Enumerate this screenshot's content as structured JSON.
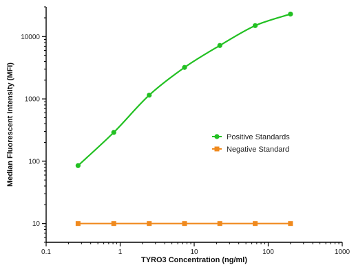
{
  "chart_data": {
    "type": "scatter",
    "title": "",
    "xlabel": "TYRO3 Concentration (ng/ml)",
    "ylabel": "Median Fluorescent Intensity (MFI)",
    "xscale": "log",
    "yscale": "log",
    "xlim": [
      0.1,
      1000
    ],
    "ylim": [
      5,
      30000
    ],
    "x_ticks": [
      0.1,
      1,
      10,
      100,
      1000
    ],
    "x_tick_labels": [
      "0.1",
      "1",
      "10",
      "100",
      "1000"
    ],
    "y_ticks": [
      10,
      100,
      1000,
      10000
    ],
    "y_tick_labels": [
      "10",
      "100",
      "1000",
      "10000"
    ],
    "grid": false,
    "legend_position": "right-middle",
    "series": [
      {
        "name": "Positive Standards",
        "color": "#22c022",
        "marker": "circle",
        "fit": "smooth-curve",
        "x": [
          0.27,
          0.82,
          2.47,
          7.41,
          22.2,
          66.7,
          200
        ],
        "y": [
          85,
          290,
          1150,
          3200,
          7200,
          15000,
          23000
        ]
      },
      {
        "name": "Negative Standard",
        "color": "#f08a1e",
        "marker": "square",
        "fit": "line",
        "x": [
          0.27,
          0.82,
          2.47,
          7.41,
          22.2,
          66.7,
          200
        ],
        "y": [
          10,
          10,
          10,
          10,
          10,
          10,
          10
        ]
      }
    ]
  }
}
